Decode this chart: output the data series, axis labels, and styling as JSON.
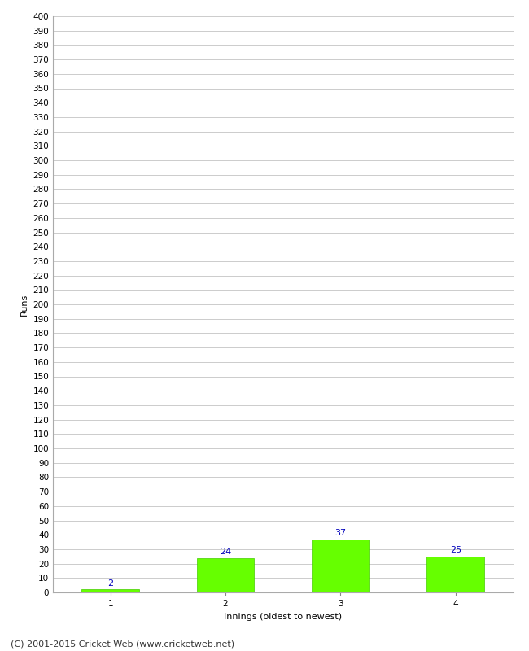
{
  "categories": [
    1,
    2,
    3,
    4
  ],
  "values": [
    2,
    24,
    37,
    25
  ],
  "bar_color": "#66ff00",
  "bar_edge_color": "#44cc00",
  "xlabel": "Innings (oldest to newest)",
  "ylabel": "Runs",
  "ylim": [
    0,
    400
  ],
  "ytick_step": 10,
  "label_color": "#0000bb",
  "label_fontsize": 8,
  "tick_fontsize": 7.5,
  "xlabel_fontsize": 8,
  "ylabel_fontsize": 8,
  "background_color": "#ffffff",
  "grid_color": "#cccccc",
  "footer_text": "(C) 2001-2015 Cricket Web (www.cricketweb.net)",
  "footer_fontsize": 8,
  "footer_color": "#333333"
}
